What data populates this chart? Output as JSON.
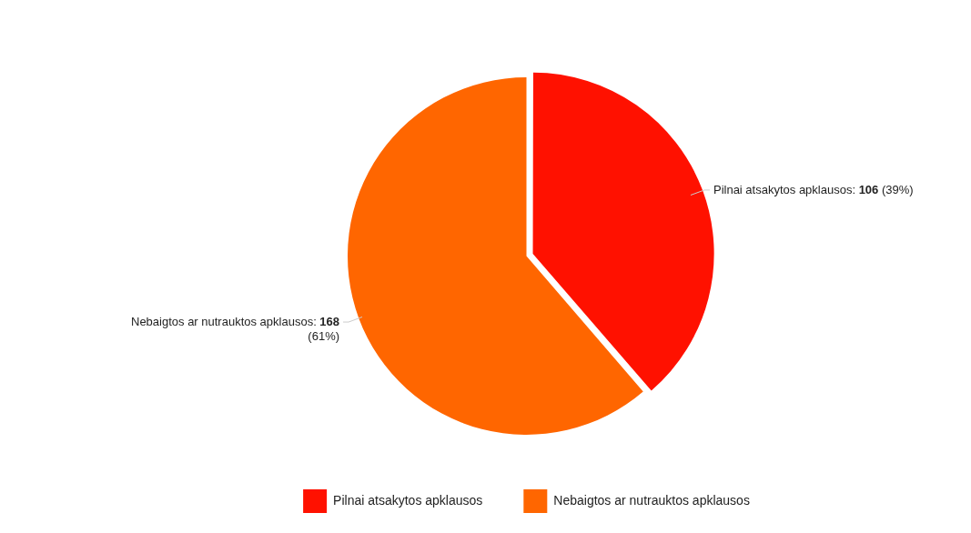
{
  "chart_data": {
    "type": "pie",
    "categories": [
      "Pilnai atsakytos apklausos",
      "Nebaigtos ar nutrauktos apklausos"
    ],
    "values": [
      106,
      168
    ],
    "colors": [
      "#ff1100",
      "#ff6600"
    ],
    "value_labels": [
      "Pilnai atsakytos apklausos: 106 (39%)",
      "Nebaigtos ar nutrauktos apklausos: 168 (61%)"
    ],
    "legend": "bottom"
  }
}
